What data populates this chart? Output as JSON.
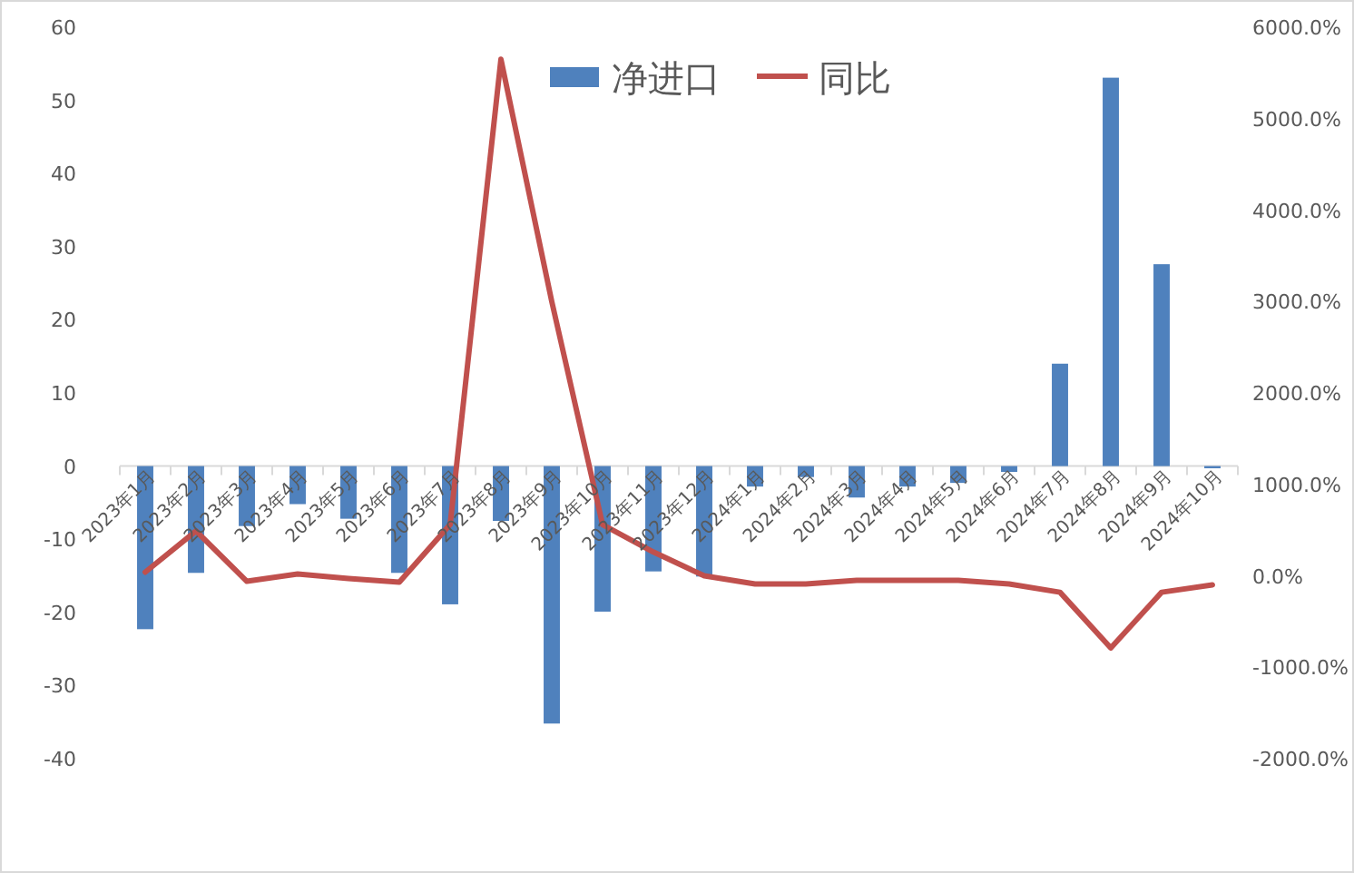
{
  "chart_data": {
    "type": "bar",
    "categories": [
      "2023年1月",
      "2023年2月",
      "2023年3月",
      "2023年4月",
      "2023年5月",
      "2023年6月",
      "2023年7月",
      "2023年8月",
      "2023年9月",
      "2023年10月",
      "2023年11月",
      "2023年12月",
      "2024年1月",
      "2024年2月",
      "2024年3月",
      "2024年4月",
      "2024年5月",
      "2024年6月",
      "2024年7月",
      "2024年8月",
      "2024年9月",
      "2024年10月"
    ],
    "series": [
      {
        "name": "净进口",
        "color": "#4f81bd",
        "values": [
          -22.3,
          -14.6,
          -8.2,
          -5.2,
          -7.2,
          -14.6,
          -18.9,
          -7.5,
          -35.2,
          -19.9,
          -14.4,
          -15.1,
          -2.8,
          -1.5,
          -4.3,
          -2.8,
          -2.3,
          -0.8,
          14.0,
          53.1,
          27.6,
          -0.3
        ]
      },
      {
        "name": "同比",
        "type": "line",
        "axis": "y2",
        "color": "#c0504d",
        "values": [
          40,
          490,
          -60,
          20,
          -30,
          -70,
          560,
          5650,
          3000,
          560,
          260,
          0,
          -90,
          -90,
          -50,
          -50,
          -50,
          -90,
          -180,
          -790,
          -180,
          -100
        ]
      }
    ],
    "ylim": [
      -40,
      60
    ],
    "yticks": [
      -40,
      -30,
      -20,
      -10,
      0,
      10,
      20,
      30,
      40,
      50,
      60
    ],
    "y2lim": [
      -2000,
      6000
    ],
    "y2ticks": [
      {
        "value": -2000,
        "label": "-2000.0%"
      },
      {
        "value": -1000,
        "label": "-1000.0%"
      },
      {
        "value": 0,
        "label": "0.0%"
      },
      {
        "value": 1000,
        "label": "1000.0%"
      },
      {
        "value": 2000,
        "label": "2000.0%"
      },
      {
        "value": 3000,
        "label": "3000.0%"
      },
      {
        "value": 4000,
        "label": "4000.0%"
      },
      {
        "value": 5000,
        "label": "5000.0%"
      },
      {
        "value": 6000,
        "label": "6000.0%"
      }
    ],
    "grid": false,
    "legend": "top",
    "marker": "none"
  }
}
